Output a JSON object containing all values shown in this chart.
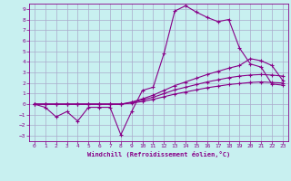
{
  "background_color": "#c8f0f0",
  "grid_color": "#aaaacc",
  "line_color": "#880088",
  "marker_color": "#880088",
  "xlabel": "Windchill (Refroidissement éolien,°C)",
  "xlabel_color": "#880088",
  "tick_color": "#880088",
  "xlim": [
    -0.5,
    23.5
  ],
  "ylim": [
    -3.5,
    9.5
  ],
  "xticks": [
    0,
    1,
    2,
    3,
    4,
    5,
    6,
    7,
    8,
    9,
    10,
    11,
    12,
    13,
    14,
    15,
    16,
    17,
    18,
    19,
    20,
    21,
    22,
    23
  ],
  "yticks": [
    -3,
    -2,
    -1,
    0,
    1,
    2,
    3,
    4,
    5,
    6,
    7,
    8,
    9
  ],
  "x": [
    0,
    1,
    2,
    3,
    4,
    5,
    6,
    7,
    8,
    9,
    10,
    11,
    12,
    13,
    14,
    15,
    16,
    17,
    18,
    19,
    20,
    21,
    22,
    23
  ],
  "line_wiggly": [
    0.0,
    -0.3,
    -1.2,
    -0.7,
    -1.6,
    -0.3,
    -0.3,
    -0.3,
    -2.9,
    -0.7,
    1.3,
    1.6,
    4.8,
    8.8,
    9.3,
    8.7,
    8.2,
    7.8,
    8.0,
    5.3,
    3.8,
    3.5,
    1.9,
    1.8
  ],
  "line_smooth1": [
    0.0,
    0.0,
    0.0,
    0.0,
    0.0,
    0.0,
    0.0,
    0.0,
    0.0,
    0.15,
    0.4,
    0.65,
    1.0,
    1.35,
    1.6,
    1.85,
    2.1,
    2.3,
    2.5,
    2.65,
    2.75,
    2.8,
    2.75,
    2.65
  ],
  "line_smooth2": [
    0.0,
    0.0,
    0.0,
    0.0,
    0.0,
    0.0,
    0.0,
    0.0,
    0.0,
    0.1,
    0.25,
    0.45,
    0.7,
    0.95,
    1.15,
    1.35,
    1.55,
    1.7,
    1.85,
    1.95,
    2.05,
    2.1,
    2.05,
    2.0
  ],
  "line_smooth3": [
    0.0,
    0.0,
    0.0,
    0.0,
    0.0,
    0.0,
    0.0,
    0.0,
    0.0,
    0.2,
    0.5,
    0.85,
    1.3,
    1.75,
    2.1,
    2.45,
    2.8,
    3.1,
    3.4,
    3.65,
    4.3,
    4.1,
    3.65,
    2.25
  ]
}
